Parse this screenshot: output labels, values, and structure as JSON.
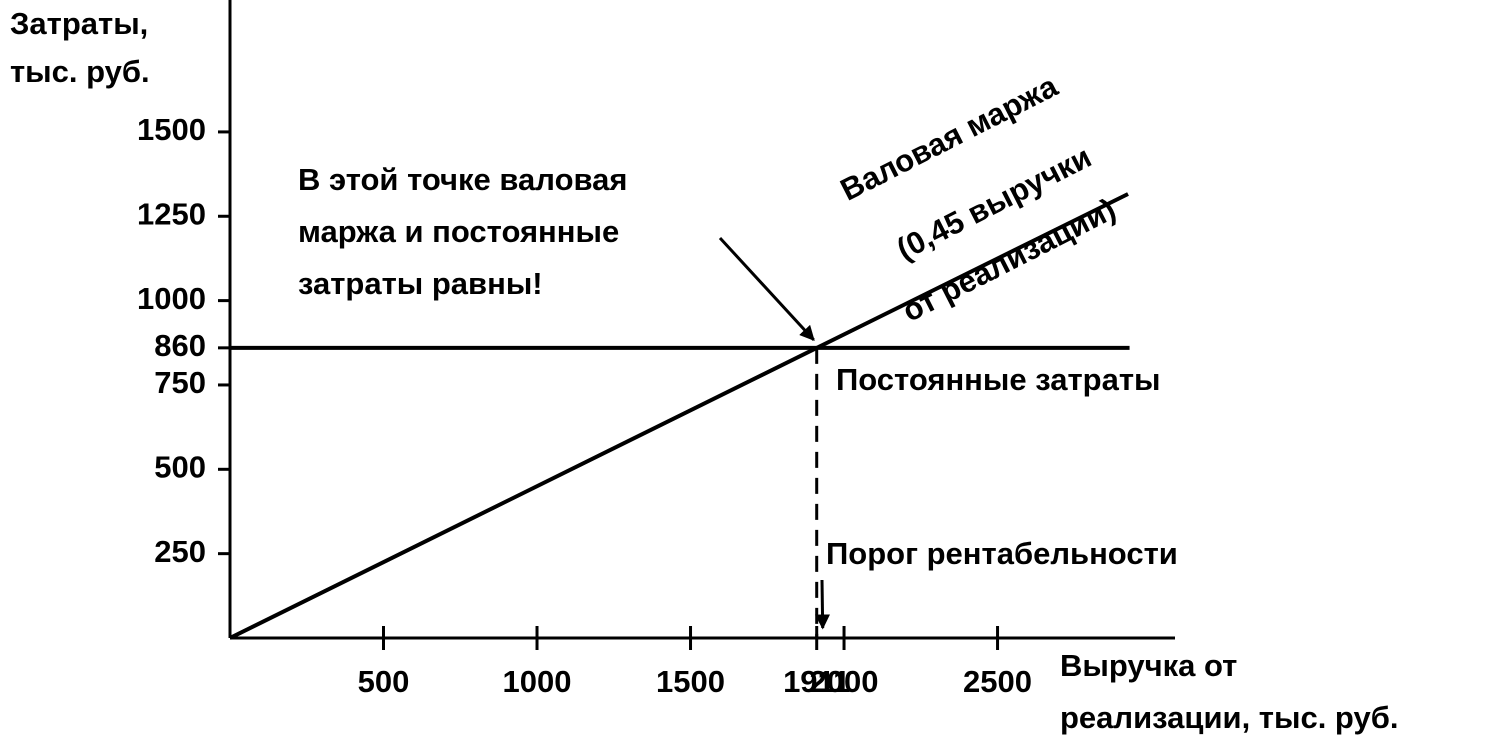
{
  "chart_data": {
    "type": "line",
    "y_label": [
      "Затраты,",
      "тыс. руб."
    ],
    "x_label": [
      "Выручка от",
      "реализации, тыс. руб."
    ],
    "xlim": [
      0,
      3078
    ],
    "ylim": [
      0,
      1891
    ],
    "xticks": [
      500,
      1000,
      1500,
      1911,
      2000,
      2500
    ],
    "yticks": [
      250,
      500,
      750,
      860,
      1000,
      1250,
      1500
    ],
    "series": [
      {
        "x": [
          0,
          2925
        ],
        "values": [
          0,
          1316
        ],
        "color": "#000000"
      },
      {
        "x": [
          0,
          2930
        ],
        "values": [
          860,
          860
        ],
        "color": "#000000"
      }
    ],
    "breakeven": {
      "x": 1911,
      "y": 860
    },
    "annotations": {
      "point_note": [
        "В этой точке валовая",
        "маржа и постоянные",
        "затраты равны!"
      ],
      "margin_note": [
        "Валовая маржа",
        "(0,45 выручки",
        "от реализации)"
      ],
      "fixed_note": "Постоянные затраты",
      "threshold_note": "Порог рентабельности"
    }
  }
}
